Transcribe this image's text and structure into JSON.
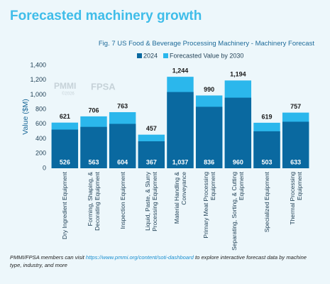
{
  "chart_data": {
    "type": "bar",
    "title": "Forecasted machinery growth",
    "subtitle": "Fig. 7 US Food & Beverage Processing Machinery - Machinery Forecast",
    "y_label": "Value ($M)",
    "watermark": [
      "PMMI",
      "©2026",
      "FPSA"
    ],
    "categories": [
      "Dry Ingredient Equipment",
      "Forming, Shaping, & Decorating Equipment",
      "Inspection Equipment",
      "Liquid, Paste, & Slurry Processing Equipment",
      "Material Handling & Conveyance",
      "Primary Meat Processing Equipment",
      "Separating, Sorting, & Cutting Equipment",
      "Specialized Equipment",
      "Thermal Processing Equipment"
    ],
    "series": [
      {
        "name": "2024",
        "color": "#0a69a0",
        "values": [
          526,
          563,
          604,
          367,
          1037,
          836,
          960,
          503,
          633
        ]
      },
      {
        "name": "Forecasted Value by 2030",
        "color": "#2bb7ec",
        "values": [
          621,
          706,
          763,
          457,
          1244,
          990,
          1194,
          619,
          757
        ]
      }
    ],
    "value_labels": [
      [
        "526",
        "563",
        "604",
        "367",
        "1,037",
        "836",
        "960",
        "503",
        "633"
      ],
      [
        "621",
        "706",
        "763",
        "457",
        "1,244",
        "990",
        "1,194",
        "619",
        "757"
      ]
    ],
    "ylim": [
      0,
      1400
    ],
    "yticks": [
      0,
      200,
      400,
      600,
      800,
      {
        "value": 1000,
        "label": "1,000"
      },
      {
        "value": 1200,
        "label": "1,200"
      },
      {
        "value": 1400,
        "label": "1,400"
      }
    ],
    "grid": false,
    "footnote": {
      "before": "PMMI/FPSA members can visit",
      "link": "https://www.pmmi.org/content/soti-dashboard",
      "after": "to explore interactive forecast data by machine type, industry, and more"
    }
  }
}
